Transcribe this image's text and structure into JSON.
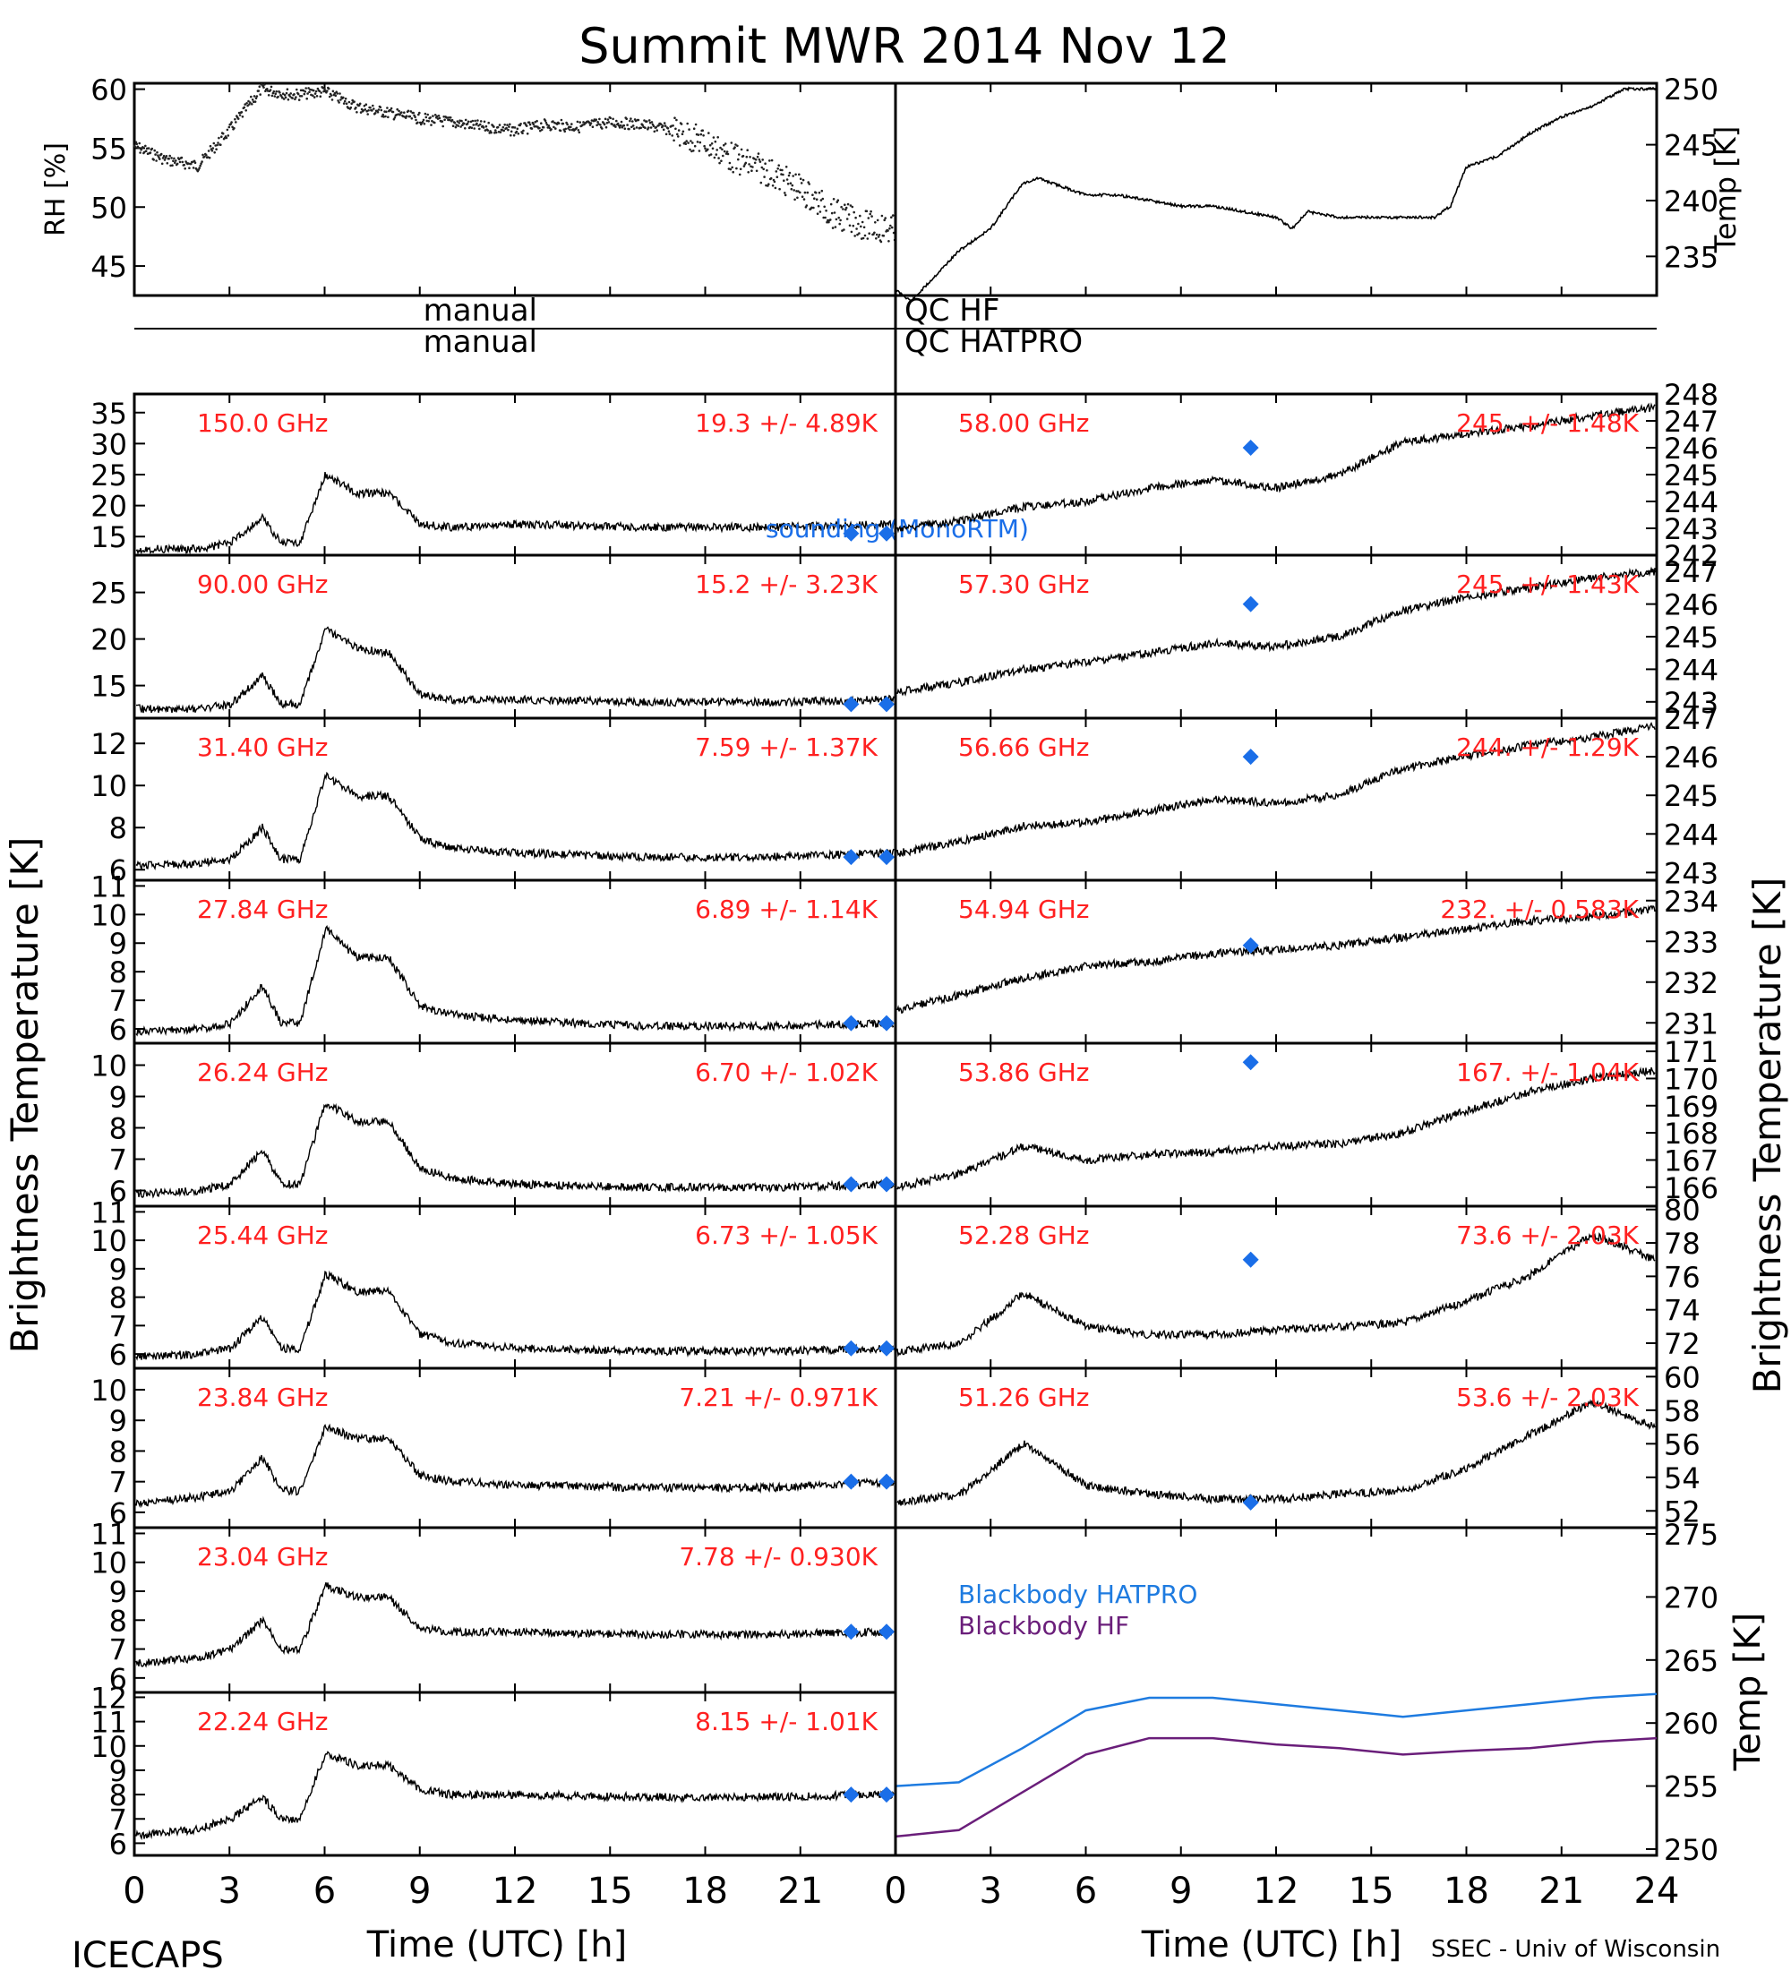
{
  "title": "Summit MWR 2014 Nov 12",
  "footer_left": "ICECAPS",
  "footer_right": "SSEC - Univ of Wisconsin",
  "xlabel": "Time (UTC) [h]",
  "left_axis_label": "Brightness Temperature [K]",
  "right_axis_label": "Brightness Temperature [K]",
  "qc_prefix": "manual",
  "qc_hf": "QC HF",
  "qc_hatpro": "QC HATPRO",
  "sounding_label": "sounding (MonoRTM)",
  "colors": {
    "channel_text": "#ff2020",
    "sounding": "#1a6ee8",
    "bb_hatpro": "#1e7be0",
    "bb_hf": "#6a1e7a",
    "trace": "#000000"
  },
  "chart_data": [
    {
      "type": "scatter",
      "name": "rh",
      "ylabel": "RH [%]",
      "xlim": [
        0,
        12
      ],
      "ylim": [
        42.5,
        60.5
      ],
      "yticks": [
        45,
        50,
        55,
        60
      ],
      "x": [
        0,
        0.5,
        1,
        1.5,
        2,
        2.5,
        3,
        3.5,
        4,
        4.5,
        5,
        5.5,
        6,
        6.5,
        7,
        7.5,
        8,
        8.5,
        9,
        9.5,
        10,
        10.5,
        11,
        11.5,
        12
      ],
      "values": [
        55.2,
        54.0,
        53.5,
        56.5,
        60.0,
        59.5,
        59.8,
        58.5,
        58.0,
        57.5,
        57.2,
        56.8,
        56.5,
        57.0,
        56.8,
        57.2,
        57.0,
        56.5,
        55.5,
        54.0,
        53.0,
        51.5,
        49.5,
        48.5,
        48.0
      ]
    },
    {
      "type": "line",
      "name": "air_temp",
      "ylabel": "Temp [K]",
      "xlim": [
        0,
        24
      ],
      "ylim": [
        231.5,
        250.5
      ],
      "yticks": [
        235,
        240,
        245,
        250
      ],
      "x": [
        0,
        0.5,
        1,
        1.5,
        2,
        3,
        3.5,
        4,
        4.5,
        5,
        6,
        7,
        8,
        9,
        10,
        11,
        12,
        12.5,
        13,
        14,
        15,
        16,
        17,
        17.5,
        18,
        19,
        20,
        21,
        22,
        23,
        24
      ],
      "values": [
        232.0,
        231.0,
        232.5,
        234.0,
        235.5,
        237.5,
        239.5,
        241.5,
        242.0,
        241.5,
        240.5,
        240.5,
        240.0,
        239.5,
        239.5,
        239.0,
        238.5,
        237.5,
        239.0,
        238.5,
        238.5,
        238.5,
        238.5,
        239.5,
        243.0,
        244.0,
        246.0,
        247.5,
        248.5,
        250.0,
        250.0
      ]
    },
    {
      "type": "line",
      "name": "150.0 GHz",
      "label": "150.0 GHz",
      "stat": "19.3 +/- 4.89K",
      "xlim": [
        0,
        12
      ],
      "ylim": [
        12,
        38
      ],
      "yticks": [
        15,
        20,
        25,
        30,
        35
      ],
      "sounding": [
        11.3,
        15.5
      ],
      "x": [
        0,
        1,
        1.5,
        2,
        2.3,
        2.6,
        3,
        3.5,
        4,
        4.5,
        5,
        6,
        8,
        10,
        12
      ],
      "values": [
        13,
        13,
        14,
        18,
        14,
        14,
        25,
        22,
        22,
        17,
        16.5,
        17,
        16.5,
        16.5,
        17
      ]
    },
    {
      "type": "line",
      "name": "58.00 GHz",
      "label": "58.00 GHz",
      "stat": "245. +/- 1.48K",
      "xlim": [
        12,
        24
      ],
      "ylim": [
        242,
        248
      ],
      "yticks": [
        242,
        243,
        244,
        245,
        246,
        247,
        248
      ],
      "sounding": [
        17.6,
        246.0
      ],
      "x": [
        12,
        13,
        14,
        15,
        16,
        17,
        18,
        19,
        20,
        21,
        22,
        23,
        24
      ],
      "values": [
        243.0,
        243.3,
        243.8,
        244.0,
        244.5,
        244.8,
        244.5,
        245.0,
        246.2,
        246.5,
        246.8,
        247.2,
        247.5
      ]
    },
    {
      "type": "line",
      "name": "90.00 GHz",
      "label": "90.00 GHz",
      "stat": "15.2 +/- 3.23K",
      "xlim": [
        0,
        12
      ],
      "ylim": [
        11.5,
        29
      ],
      "yticks": [
        15,
        20,
        25
      ],
      "sounding": [
        11.3,
        13.0
      ],
      "x": [
        0,
        1,
        1.5,
        2,
        2.3,
        2.6,
        3,
        3.5,
        4,
        4.5,
        5,
        6,
        8,
        10,
        12
      ],
      "values": [
        12.5,
        12.5,
        13,
        16,
        13,
        13,
        21,
        19,
        18.5,
        14,
        13.5,
        13.5,
        13.2,
        13.2,
        13.5
      ]
    },
    {
      "type": "line",
      "name": "57.30 GHz",
      "label": "57.30 GHz",
      "stat": "245. +/- 1.43K",
      "xlim": [
        12,
        24
      ],
      "ylim": [
        242.5,
        247.5
      ],
      "yticks": [
        243,
        244,
        245,
        246,
        247
      ],
      "sounding": [
        17.6,
        246.0
      ],
      "x": [
        12,
        13,
        14,
        15,
        16,
        17,
        18,
        19,
        20,
        21,
        22,
        23,
        24
      ],
      "values": [
        243.3,
        243.6,
        244.0,
        244.2,
        244.5,
        244.8,
        244.7,
        245.0,
        245.8,
        246.2,
        246.5,
        246.8,
        247.0
      ]
    },
    {
      "type": "line",
      "name": "31.40 GHz",
      "label": "31.40 GHz",
      "stat": "7.59 +/- 1.37K",
      "xlim": [
        0,
        12
      ],
      "ylim": [
        5.5,
        13.2
      ],
      "yticks": [
        6,
        8,
        10,
        12
      ],
      "sounding": [
        11.3,
        6.6
      ],
      "x": [
        0,
        1,
        1.5,
        2,
        2.3,
        2.6,
        3,
        3.5,
        4,
        4.5,
        5,
        6,
        8,
        10,
        12
      ],
      "values": [
        6.2,
        6.3,
        6.5,
        8,
        6.5,
        6.5,
        10.5,
        9.5,
        9.5,
        7.5,
        7.0,
        6.8,
        6.6,
        6.6,
        6.8
      ]
    },
    {
      "type": "line",
      "name": "56.66 GHz",
      "label": "56.66 GHz",
      "stat": "244. +/- 1.29K",
      "xlim": [
        12,
        24
      ],
      "ylim": [
        242.8,
        247
      ],
      "yticks": [
        243,
        244,
        245,
        246,
        247
      ],
      "sounding": [
        17.6,
        246.0
      ],
      "x": [
        12,
        13,
        14,
        15,
        16,
        17,
        18,
        19,
        20,
        21,
        22,
        23,
        24
      ],
      "values": [
        243.5,
        243.8,
        244.2,
        244.3,
        244.6,
        244.9,
        244.8,
        245.0,
        245.7,
        246.0,
        246.3,
        246.5,
        246.8
      ]
    },
    {
      "type": "line",
      "name": "27.84 GHz",
      "label": "27.84 GHz",
      "stat": "6.89 +/- 1.14K",
      "xlim": [
        0,
        12
      ],
      "ylim": [
        5.5,
        11.2
      ],
      "yticks": [
        6,
        7,
        8,
        9,
        10,
        11
      ],
      "sounding": [
        11.3,
        6.2
      ],
      "x": [
        0,
        1,
        1.5,
        2,
        2.3,
        2.6,
        3,
        3.5,
        4,
        4.5,
        5,
        6,
        8,
        10,
        12
      ],
      "values": [
        5.9,
        6.0,
        6.2,
        7.5,
        6.2,
        6.2,
        9.5,
        8.5,
        8.5,
        6.8,
        6.5,
        6.3,
        6.1,
        6.1,
        6.2
      ]
    },
    {
      "type": "line",
      "name": "54.94 GHz",
      "label": "54.94 GHz",
      "stat": "232. +/- 0.583K",
      "xlim": [
        12,
        24
      ],
      "ylim": [
        230.5,
        234.5
      ],
      "yticks": [
        231,
        232,
        233,
        234
      ],
      "sounding": [
        17.6,
        232.9
      ],
      "x": [
        12,
        13,
        14,
        15,
        16,
        17,
        18,
        19,
        20,
        21,
        22,
        23,
        24
      ],
      "values": [
        231.3,
        231.7,
        232.1,
        232.4,
        232.5,
        232.7,
        232.8,
        232.9,
        233.1,
        233.3,
        233.5,
        233.6,
        233.8
      ]
    },
    {
      "type": "line",
      "name": "26.24 GHz",
      "label": "26.24 GHz",
      "stat": "6.70 +/- 1.02K",
      "xlim": [
        0,
        12
      ],
      "ylim": [
        5.5,
        10.7
      ],
      "yticks": [
        6,
        7,
        8,
        9,
        10
      ],
      "sounding": [
        11.3,
        6.2
      ],
      "x": [
        0,
        1,
        1.5,
        2,
        2.3,
        2.6,
        3,
        3.5,
        4,
        4.5,
        5,
        6,
        8,
        10,
        12
      ],
      "values": [
        5.9,
        6.0,
        6.2,
        7.3,
        6.2,
        6.2,
        8.8,
        8.2,
        8.2,
        6.7,
        6.4,
        6.2,
        6.1,
        6.1,
        6.2
      ]
    },
    {
      "type": "line",
      "name": "53.86 GHz",
      "label": "53.86 GHz",
      "stat": "167. +/- 1.04K",
      "xlim": [
        12,
        24
      ],
      "ylim": [
        165.3,
        171.3
      ],
      "yticks": [
        166,
        167,
        168,
        169,
        170,
        171
      ],
      "sounding": [
        17.6,
        170.6
      ],
      "x": [
        12,
        13,
        14,
        15,
        16,
        17,
        18,
        19,
        20,
        21,
        22,
        23,
        24
      ],
      "values": [
        166.0,
        166.5,
        167.5,
        167.0,
        167.2,
        167.3,
        167.5,
        167.6,
        168.0,
        168.8,
        169.5,
        170.0,
        170.3
      ]
    },
    {
      "type": "line",
      "name": "25.44 GHz",
      "label": "25.44 GHz",
      "stat": "6.73 +/- 1.05K",
      "xlim": [
        0,
        12
      ],
      "ylim": [
        5.5,
        11.2
      ],
      "yticks": [
        6,
        7,
        8,
        9,
        10,
        11
      ],
      "sounding": [
        11.3,
        6.2
      ],
      "x": [
        0,
        1,
        1.5,
        2,
        2.3,
        2.6,
        3,
        3.5,
        4,
        4.5,
        5,
        6,
        8,
        10,
        12
      ],
      "values": [
        5.9,
        6.0,
        6.2,
        7.3,
        6.2,
        6.2,
        8.8,
        8.2,
        8.2,
        6.7,
        6.4,
        6.2,
        6.1,
        6.1,
        6.2
      ]
    },
    {
      "type": "line",
      "name": "52.28 GHz",
      "label": "52.28 GHz",
      "stat": "73.6 +/- 2.03K",
      "xlim": [
        12,
        24
      ],
      "ylim": [
        70.5,
        80.2
      ],
      "yticks": [
        72,
        74,
        76,
        78,
        80
      ],
      "sounding": [
        17.6,
        77.0
      ],
      "x": [
        12,
        13,
        14,
        15,
        16,
        17,
        18,
        19,
        20,
        21,
        22,
        23,
        24
      ],
      "values": [
        71.5,
        72.0,
        75.0,
        73.0,
        72.5,
        72.5,
        72.8,
        73.0,
        73.2,
        74.5,
        76.0,
        78.5,
        77.0
      ]
    },
    {
      "type": "line",
      "name": "23.84 GHz",
      "label": "23.84 GHz",
      "stat": "7.21 +/- 0.971K",
      "xlim": [
        0,
        12
      ],
      "ylim": [
        5.5,
        10.7
      ],
      "yticks": [
        6,
        7,
        8,
        9,
        10
      ],
      "sounding": [
        11.3,
        7.0
      ],
      "x": [
        0,
        1,
        1.5,
        2,
        2.3,
        2.6,
        3,
        3.5,
        4,
        4.5,
        5,
        6,
        8,
        10,
        12
      ],
      "values": [
        6.3,
        6.5,
        6.7,
        7.8,
        6.7,
        6.7,
        8.8,
        8.4,
        8.4,
        7.2,
        7.0,
        6.9,
        6.8,
        6.8,
        7.0
      ]
    },
    {
      "type": "line",
      "name": "51.26 GHz",
      "label": "51.26 GHz",
      "stat": "53.6 +/- 2.03K",
      "xlim": [
        12,
        24
      ],
      "ylim": [
        51,
        60.5
      ],
      "yticks": [
        52,
        54,
        56,
        58,
        60
      ],
      "sounding": [
        17.6,
        52.5
      ],
      "x": [
        12,
        13,
        14,
        15,
        16,
        17,
        18,
        19,
        20,
        21,
        22,
        23,
        24
      ],
      "values": [
        52.5,
        53.0,
        56.0,
        53.5,
        53.0,
        52.7,
        52.7,
        53.0,
        53.2,
        54.5,
        56.5,
        58.5,
        57.0
      ]
    },
    {
      "type": "line",
      "name": "23.04 GHz",
      "label": "23.04 GHz",
      "stat": "7.78 +/- 0.930K",
      "xlim": [
        0,
        12
      ],
      "ylim": [
        5.5,
        11.2
      ],
      "yticks": [
        6,
        7,
        8,
        9,
        10,
        11
      ],
      "sounding": [
        11.3,
        7.6
      ],
      "x": [
        0,
        1,
        1.5,
        2,
        2.3,
        2.6,
        3,
        3.5,
        4,
        4.5,
        5,
        6,
        8,
        10,
        12
      ],
      "values": [
        6.5,
        6.7,
        7.0,
        8.0,
        7.0,
        7.0,
        9.2,
        8.8,
        8.8,
        7.7,
        7.6,
        7.6,
        7.5,
        7.5,
        7.6
      ]
    },
    {
      "type": "line",
      "name": "blackbody",
      "ylabel": "Temp [K]",
      "xlim": [
        12,
        24
      ],
      "ylim": [
        249.5,
        275.5
      ],
      "yticks": [
        250,
        255,
        260,
        265,
        270,
        275
      ],
      "x": [
        12,
        13,
        14,
        15,
        16,
        17,
        18,
        19,
        20,
        21,
        22,
        23,
        24
      ],
      "series": [
        {
          "name": "Blackbody HATPRO",
          "values": [
            255.0,
            255.3,
            258.0,
            261.0,
            262.0,
            262.0,
            261.5,
            261.0,
            260.5,
            261.0,
            261.5,
            262.0,
            262.3
          ]
        },
        {
          "name": "Blackbody HF",
          "values": [
            251.0,
            251.5,
            254.5,
            257.5,
            258.8,
            258.8,
            258.3,
            258.0,
            257.5,
            257.8,
            258.0,
            258.5,
            258.8
          ]
        }
      ]
    },
    {
      "type": "line",
      "name": "22.24 GHz",
      "label": "22.24 GHz",
      "stat": "8.15 +/- 1.01K",
      "xlim": [
        0,
        12
      ],
      "ylim": [
        5.5,
        12.2
      ],
      "yticks": [
        6,
        7,
        8,
        9,
        10,
        11,
        12
      ],
      "sounding": [
        11.3,
        8.0
      ],
      "x": [
        0,
        1,
        1.5,
        2,
        2.3,
        2.6,
        3,
        3.5,
        4,
        4.5,
        5,
        6,
        8,
        10,
        12
      ],
      "values": [
        6.3,
        6.6,
        7.0,
        7.9,
        7.0,
        7.0,
        9.7,
        9.2,
        9.2,
        8.2,
        8.0,
        8.0,
        7.9,
        7.9,
        8.0
      ]
    }
  ],
  "xticks": [
    0,
    3,
    6,
    9,
    12,
    15,
    18,
    21,
    24
  ],
  "right_xticks": [
    0,
    3,
    6,
    9,
    12,
    15,
    18,
    21,
    24
  ]
}
